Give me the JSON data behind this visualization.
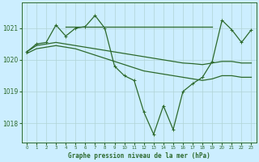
{
  "title": "Graphe pression niveau de la mer (hPa)",
  "bg_color": "#cceeff",
  "line_color": "#2d6a2d",
  "grid_color": "#b0d4d4",
  "xlim": [
    -0.5,
    23.5
  ],
  "ylim": [
    1017.4,
    1021.8
  ],
  "yticks": [
    1018,
    1019,
    1020,
    1021
  ],
  "xticks": [
    0,
    1,
    2,
    3,
    4,
    5,
    6,
    7,
    8,
    9,
    10,
    11,
    12,
    13,
    14,
    15,
    16,
    17,
    18,
    19,
    20,
    21,
    22,
    23
  ],
  "series": [
    {
      "x": [
        0,
        1,
        2,
        3,
        4,
        5,
        6,
        7,
        8,
        9,
        10,
        11,
        12,
        13,
        14,
        15,
        16,
        17,
        18,
        19,
        20,
        21,
        22,
        23
      ],
      "y": [
        1020.25,
        1020.5,
        1020.55,
        1021.1,
        1020.75,
        1021.0,
        1021.05,
        1021.4,
        1021.0,
        1019.8,
        1019.5,
        1019.35,
        1018.35,
        1017.65,
        1018.55,
        1017.8,
        1019.0,
        1019.25,
        1019.45,
        1019.95,
        1021.25,
        1020.95,
        1020.55,
        1020.95
      ],
      "marker": true,
      "lw": 0.9
    },
    {
      "x": [
        4,
        5,
        6,
        7,
        8,
        9,
        10,
        11,
        12,
        13,
        14,
        15,
        16,
        17,
        18,
        19
      ],
      "y": [
        1021.05,
        1021.05,
        1021.05,
        1021.05,
        1021.05,
        1021.05,
        1021.05,
        1021.05,
        1021.05,
        1021.05,
        1021.05,
        1021.05,
        1021.05,
        1021.05,
        1021.05,
        1021.05
      ],
      "marker": false,
      "lw": 0.9
    },
    {
      "x": [
        0,
        1,
        2,
        3,
        4,
        5,
        6,
        7,
        8,
        9,
        10,
        11,
        12,
        13,
        14,
        15,
        16,
        17,
        18,
        19,
        20,
        21,
        22,
        23
      ],
      "y": [
        1020.25,
        1020.45,
        1020.5,
        1020.55,
        1020.5,
        1020.45,
        1020.4,
        1020.35,
        1020.3,
        1020.25,
        1020.2,
        1020.15,
        1020.1,
        1020.05,
        1020.0,
        1019.95,
        1019.9,
        1019.88,
        1019.85,
        1019.9,
        1019.95,
        1019.95,
        1019.9,
        1019.9
      ],
      "marker": false,
      "lw": 0.9
    },
    {
      "x": [
        0,
        1,
        2,
        3,
        4,
        5,
        6,
        7,
        8,
        9,
        10,
        11,
        12,
        13,
        14,
        15,
        16,
        17,
        18,
        19,
        20,
        21,
        22,
        23
      ],
      "y": [
        1020.2,
        1020.35,
        1020.4,
        1020.45,
        1020.4,
        1020.35,
        1020.25,
        1020.15,
        1020.05,
        1019.95,
        1019.85,
        1019.75,
        1019.65,
        1019.6,
        1019.55,
        1019.5,
        1019.45,
        1019.4,
        1019.35,
        1019.4,
        1019.5,
        1019.5,
        1019.45,
        1019.45
      ],
      "marker": false,
      "lw": 0.9
    }
  ]
}
